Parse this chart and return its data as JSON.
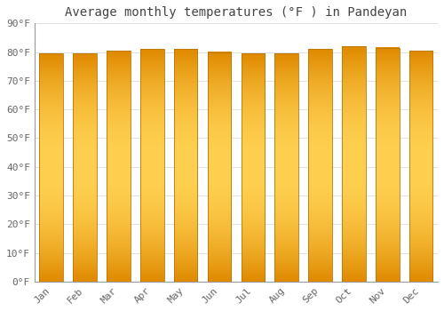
{
  "title": "Average monthly temperatures (°F ) in Pandeyan",
  "months": [
    "Jan",
    "Feb",
    "Mar",
    "Apr",
    "May",
    "Jun",
    "Jul",
    "Aug",
    "Sep",
    "Oct",
    "Nov",
    "Dec"
  ],
  "values": [
    79.5,
    79.5,
    80.5,
    81.0,
    81.0,
    80.0,
    79.5,
    79.5,
    81.0,
    82.0,
    81.5,
    80.5
  ],
  "ylim": [
    0,
    90
  ],
  "yticks": [
    0,
    10,
    20,
    30,
    40,
    50,
    60,
    70,
    80,
    90
  ],
  "ytick_labels": [
    "0°F",
    "10°F",
    "20°F",
    "30°F",
    "40°F",
    "50°F",
    "60°F",
    "70°F",
    "80°F",
    "90°F"
  ],
  "bar_color_center": "#FFD050",
  "bar_color_edge": "#E08A00",
  "bar_edge_color": "#B87800",
  "plot_bg_color": "#FFFFFF",
  "fig_bg_color": "#FFFFFF",
  "grid_color": "#E0E0E0",
  "title_color": "#444444",
  "tick_color": "#666666",
  "title_fontsize": 10,
  "tick_fontsize": 8,
  "figsize": [
    5.0,
    3.5
  ],
  "dpi": 100
}
